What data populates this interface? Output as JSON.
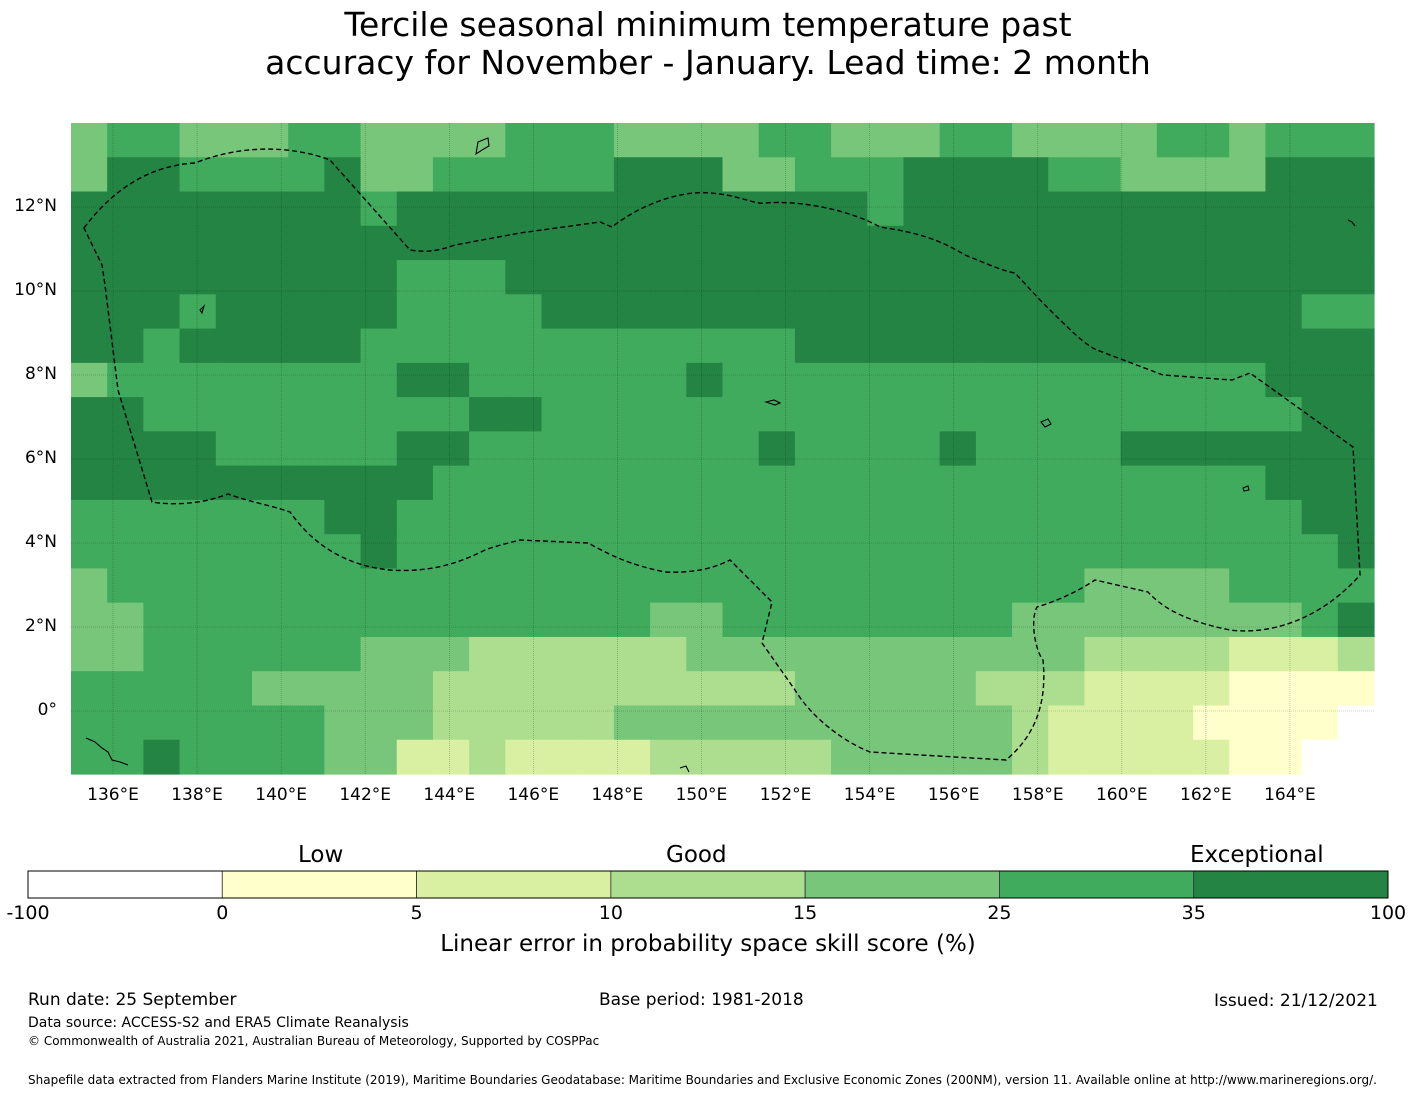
{
  "title": {
    "line1": "Tercile seasonal minimum temperature past",
    "line2": "accuracy for November - January. Lead time: 2 month"
  },
  "map": {
    "region": "Federated States of Micronesia EEZ",
    "lon_range": [
      135,
      166
    ],
    "lat_range": [
      -1.5,
      14
    ],
    "lon_ticks": [
      "136°E",
      "138°E",
      "140°E",
      "142°E",
      "144°E",
      "146°E",
      "148°E",
      "150°E",
      "152°E",
      "154°E",
      "156°E",
      "158°E",
      "160°E",
      "162°E",
      "164°E"
    ],
    "lat_ticks": [
      "12°N",
      "10°N",
      "8°N",
      "6°N",
      "4°N",
      "2°N",
      "0°"
    ],
    "grid_cols": 36,
    "grid_rows": 19,
    "skill_rows_north_to_south": [
      "455444554444555444455444554444554555",
      "466555564455555666445556666554444666",
      "666666665666666666666656666666666666",
      "666666666666666666666666666666666666",
      "666666666555666666666666666666666666",
      "666566666555566666666666666666666655",
      "665666665555555555556666666666666666",
      "455555555665555556555555555555555666",
      "665555555556655555555555555555555566",
      "666655555665555555565555655556666666",
      "666666666655555555555555555555555666",
      "555555566555555555555555555555555566",
      "555555556555555555555555555555555556",
      "455555555555555555555555555544445555",
      "445555555555555544555555554444444456",
      "445555554443333334444444444433332223",
      "555554444433333333334444433322221111",
      "555555544433333444444444443222211110",
      "556555544223222233333444443222221100"
    ]
  },
  "colorbar": {
    "label_low": "Low",
    "label_good": "Good",
    "label_exceptional": "Exceptional",
    "ticks": [
      "-100",
      "0",
      "5",
      "10",
      "15",
      "25",
      "35",
      "100"
    ],
    "colors": [
      "#ffffff",
      "#ffffcc",
      "#d9f0a3",
      "#addd8e",
      "#78c679",
      "#41ab5d",
      "#238443"
    ],
    "axis_label": "Linear error in probability space skill score (%)"
  },
  "footer": {
    "run_date": "Run date: 25 September",
    "base_period": "Base period: 1981-2018",
    "issued": "Issued: 21/12/2021",
    "data_source": "Data source: ACCESS-S2 and ERA5 Climate Reanalysis",
    "copyright": "© Commonwealth of Australia 2021, Australian Bureau of Meteorology, Supported by COSPPac",
    "shapefile": "Shapefile data extracted from Flanders Marine Institute (2019), Maritime Boundaries Geodatabase: Maritime Boundaries and Exclusive Economic Zones (200NM), version 11. Available online at http://www.marineregions.org/."
  }
}
